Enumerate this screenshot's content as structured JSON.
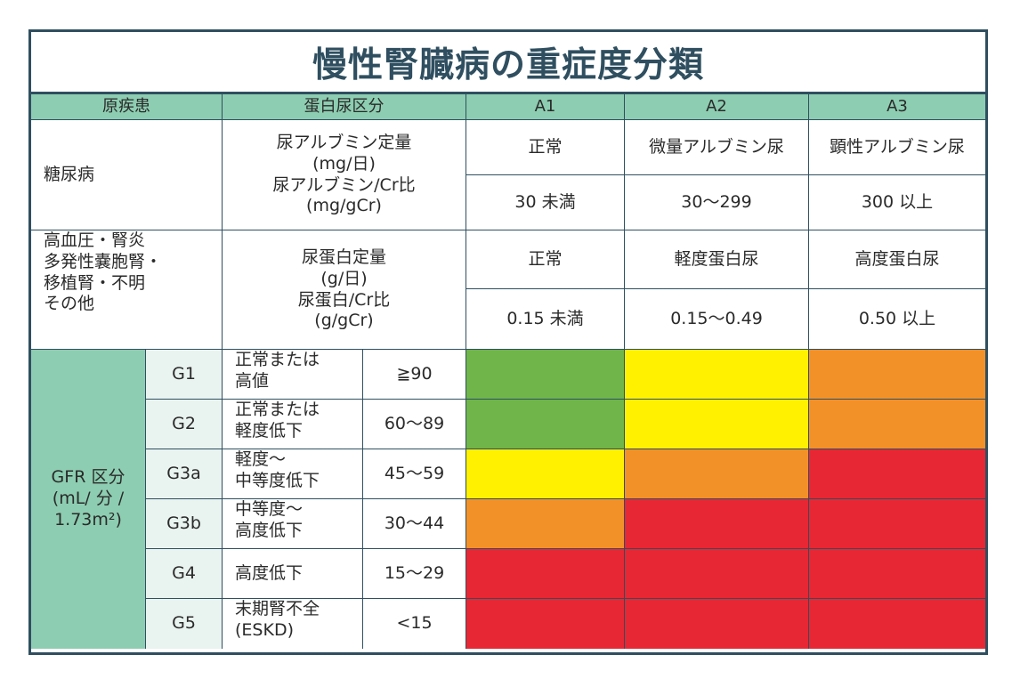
{
  "title": "慢性腎臓病の重症度分類",
  "header": {
    "cause": "原疾患",
    "protein": "蛋白尿区分",
    "a1": "A1",
    "a2": "A2",
    "a3": "A3"
  },
  "diabetes": {
    "label": "糖尿病",
    "metric_line1": "尿アルブミン定量",
    "metric_line2": "(mg/日)",
    "metric_line3": "尿アルブミン/Cr比",
    "metric_line4": "(mg/gCr)",
    "a1_name": "正常",
    "a2_name": "微量アルブミン尿",
    "a3_name": "顕性アルブミン尿",
    "a1_range": "30 未満",
    "a2_range": "30〜299",
    "a3_range": "300 以上"
  },
  "other": {
    "label_line1": "高血圧・腎炎",
    "label_line2": "多発性嚢胞腎・",
    "label_line3": "移植腎・不明",
    "label_line4": "その他",
    "metric_line1": "尿蛋白定量",
    "metric_line2": "(g/日)",
    "metric_line3": "尿蛋白/Cr比",
    "metric_line4": "(g/gCr)",
    "a1_name": "正常",
    "a2_name": "軽度蛋白尿",
    "a3_name": "高度蛋白尿",
    "a1_range": "0.15 未満",
    "a2_range": "0.15〜0.49",
    "a3_range": "0.50 以上"
  },
  "gfr": {
    "label_line1": "GFR 区分",
    "label_line2": "(mL/ 分 /",
    "label_line3": "1.73m²)",
    "rows": [
      {
        "grade": "G1",
        "desc1": "正常または",
        "desc2": "高値",
        "range": "≧90",
        "colors": [
          "green",
          "yellow",
          "orange"
        ]
      },
      {
        "grade": "G2",
        "desc1": "正常または",
        "desc2": "軽度低下",
        "range": "60〜89",
        "colors": [
          "green",
          "yellow",
          "orange"
        ]
      },
      {
        "grade": "G3a",
        "desc1": "軽度〜",
        "desc2": "中等度低下",
        "range": "45〜59",
        "colors": [
          "yellow",
          "orange",
          "red"
        ]
      },
      {
        "grade": "G3b",
        "desc1": "中等度〜",
        "desc2": "高度低下",
        "range": "30〜44",
        "colors": [
          "orange",
          "red",
          "red"
        ]
      },
      {
        "grade": "G4",
        "desc1": "高度低下",
        "desc2": "",
        "range": "15〜29",
        "colors": [
          "red",
          "red",
          "red"
        ]
      },
      {
        "grade": "G5",
        "desc1": "末期腎不全",
        "desc2": "(ESKD)",
        "range": "<15",
        "colors": [
          "red",
          "red",
          "red"
        ]
      }
    ]
  },
  "colors": {
    "green": "#6fb54a",
    "yellow": "#fff100",
    "orange": "#f39129",
    "red": "#e72834",
    "header": "#8dcdb1",
    "border": "#2f4f60"
  }
}
